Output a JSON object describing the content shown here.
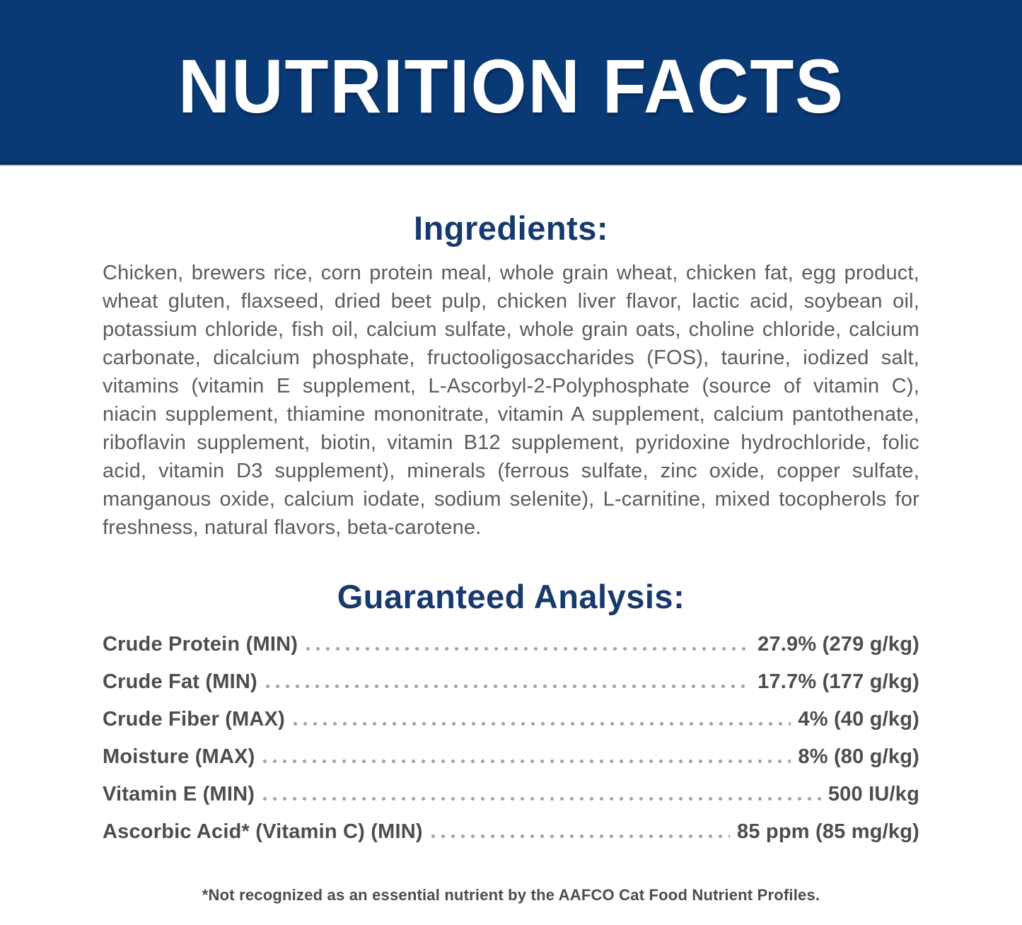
{
  "banner": {
    "title": "NUTRITION FACTS"
  },
  "ingredients": {
    "heading": "Ingredients:",
    "text": "Chicken, brewers rice, corn protein meal, whole grain wheat, chicken fat, egg product, wheat gluten, flaxseed, dried beet pulp, chicken liver flavor, lactic acid, soybean oil, potassium chloride, fish oil, calcium sulfate, whole grain oats, choline chloride, calcium carbonate, dicalcium phosphate, fructooligosaccharides (FOS), taurine, iodized salt, vitamins (vitamin E supplement, L-Ascorbyl-2-Polyphosphate (source of vitamin C), niacin supplement, thiamine mononitrate, vitamin A supplement, calcium pantothenate, riboflavin supplement, biotin, vitamin B12 supplement, pyridoxine hydrochloride, folic acid, vitamin D3 supplement), minerals (ferrous sulfate, zinc oxide, copper sulfate, manganous oxide, calcium iodate, sodium selenite), L-carnitine, mixed tocopherols for freshness, natural flavors, beta-carotene."
  },
  "analysis": {
    "heading": "Guaranteed Analysis:",
    "rows": [
      {
        "label": "Crude Protein (MIN)",
        "value": "27.9% (279 g/kg)"
      },
      {
        "label": "Crude Fat (MIN)",
        "value": "17.7% (177 g/kg)"
      },
      {
        "label": "Crude Fiber (MAX)",
        "value": "4% (40 g/kg)"
      },
      {
        "label": "Moisture (MAX)",
        "value": "8% (80 g/kg)"
      },
      {
        "label": "Vitamin E (MIN)",
        "value": "500 IU/kg"
      },
      {
        "label": "Ascorbic Acid* (Vitamin C) (MIN)",
        "value": "85 ppm (85 mg/kg)"
      }
    ]
  },
  "footnote": "*Not recognized as an essential nutrient by the AAFCO Cat Food Nutrient Profiles.",
  "colors": {
    "banner_blue": "#0a3a75",
    "banner_edge": "#0a2f5d",
    "heading_navy": "#17396e",
    "body_gray": "#5a5b5e",
    "row_dark": "#4c4d4f",
    "leader_dot": "#a2a4a7",
    "banner_text": "#ffffff",
    "background": "#ffffff"
  }
}
